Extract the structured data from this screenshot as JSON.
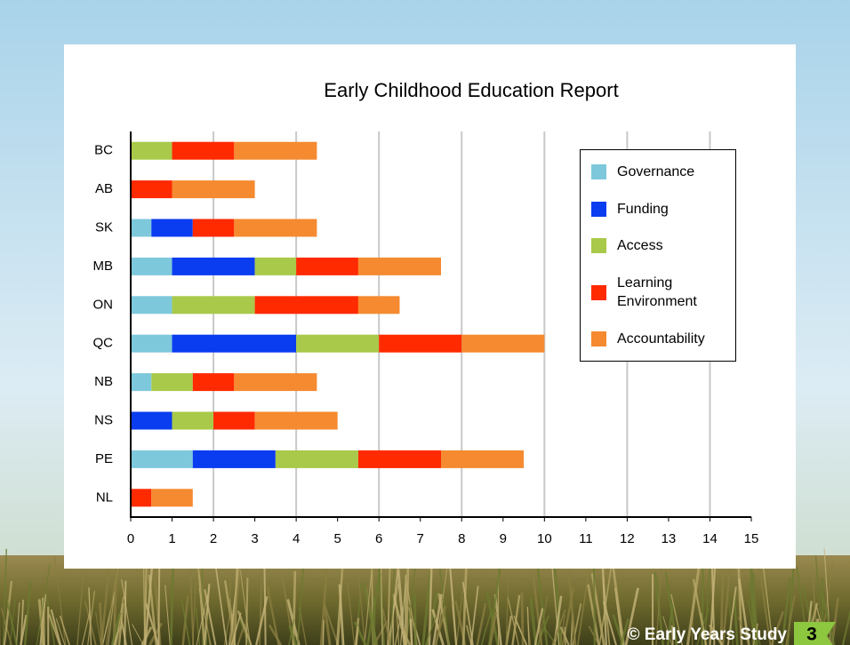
{
  "chart_data": {
    "type": "bar",
    "orientation": "horizontal",
    "stacked": true,
    "title": "Early Childhood Education Report",
    "categories": [
      "BC",
      "AB",
      "SK",
      "MB",
      "ON",
      "QC",
      "NB",
      "NS",
      "PE",
      "NL"
    ],
    "series": [
      {
        "name": "Governance",
        "color": "#7ec8dc",
        "values": [
          0,
          0,
          0.5,
          1,
          1,
          1,
          0.5,
          0,
          1.5,
          0
        ]
      },
      {
        "name": "Funding",
        "color": "#0a3cf0",
        "values": [
          0,
          0,
          1,
          2,
          0,
          3,
          0,
          1,
          2,
          0
        ]
      },
      {
        "name": "Access",
        "color": "#a9c94a",
        "values": [
          1,
          0,
          0,
          1,
          2,
          2,
          1,
          1,
          2,
          0
        ]
      },
      {
        "name": "Learning Environment",
        "color": "#ff2a00",
        "values": [
          1.5,
          1,
          1,
          1.5,
          2.5,
          2,
          1,
          1,
          2,
          0.5
        ]
      },
      {
        "name": "Accountability",
        "color": "#f58a30",
        "values": [
          2,
          2,
          2,
          2,
          1,
          2,
          2,
          2,
          2,
          1
        ]
      }
    ],
    "xlim": [
      0,
      15
    ],
    "xticks": [
      0,
      1,
      2,
      3,
      4,
      5,
      6,
      7,
      8,
      9,
      10,
      11,
      12,
      13,
      14,
      15
    ],
    "grid_x": [
      2,
      4,
      6,
      8,
      10,
      12,
      14
    ],
    "legend": "upper right"
  },
  "footer": {
    "text": "© Early Years Study",
    "page": "3"
  }
}
